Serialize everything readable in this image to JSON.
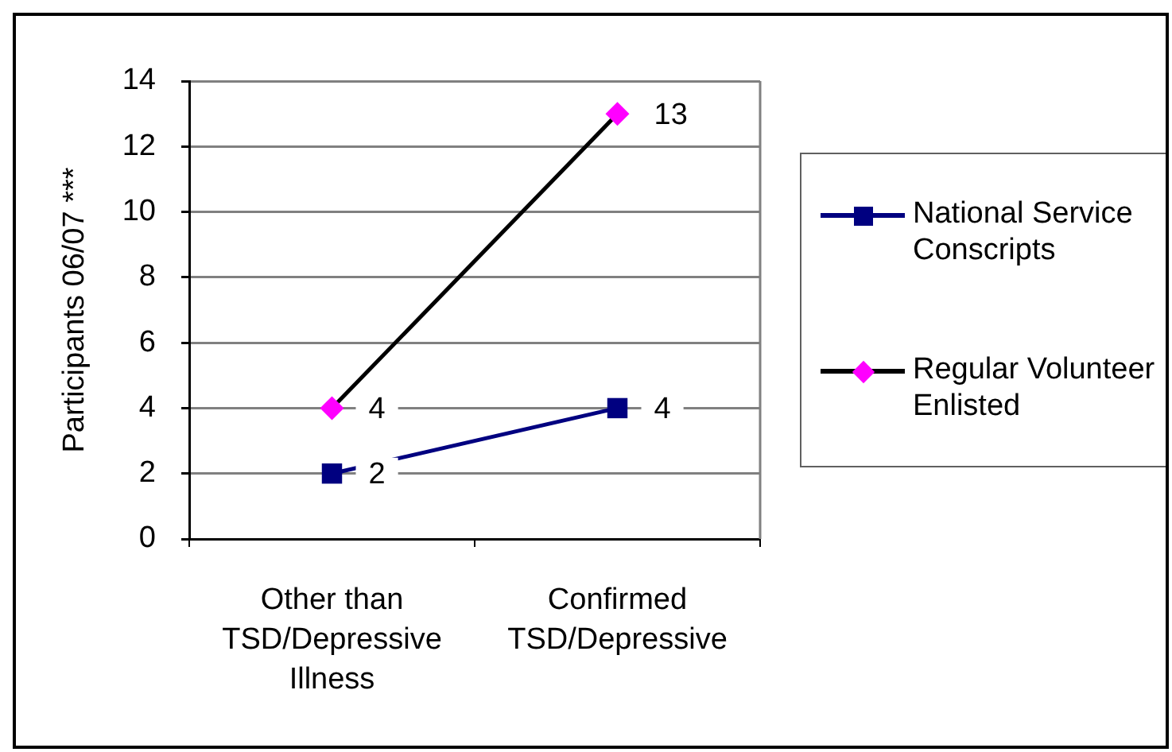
{
  "chart_data": {
    "type": "line",
    "ylabel": "Participants 06/07 ***",
    "categories": [
      "Other than TSD/Depressive Illness",
      "Confirmed TSD/Depressive"
    ],
    "series": [
      {
        "name": "National Service Conscripts",
        "color": "#000080",
        "values": [
          2,
          4
        ],
        "marker": "square"
      },
      {
        "name": "Regular Volunteer Enlisted",
        "color": "#000000",
        "colors": [
          "#ff00ff",
          "#ff00ff"
        ],
        "values": [
          4,
          13
        ],
        "marker": "diamond"
      }
    ],
    "ylim": [
      0,
      14
    ],
    "yticks": [
      0,
      2,
      4,
      6,
      8,
      10,
      12,
      14
    ],
    "grid": "y",
    "legend": "right",
    "line_style": "solid",
    "data_labels": true
  }
}
